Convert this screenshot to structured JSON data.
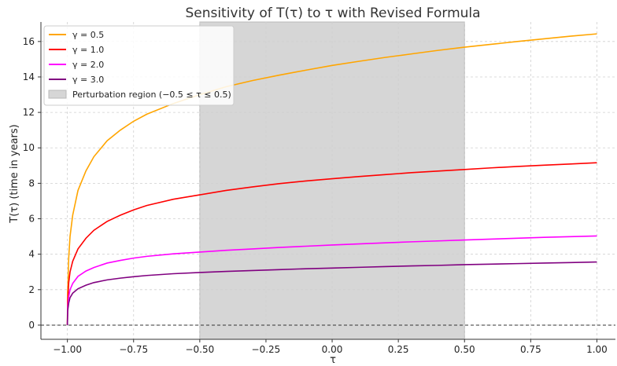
{
  "chart_data": {
    "type": "line",
    "title": "Sensitivity of T(τ) to τ with Revised Formula",
    "xlabel": "τ",
    "ylabel": "T(τ) (time in years)",
    "xlim": [
      -1.1,
      1.07
    ],
    "ylim": [
      -0.8,
      17.1
    ],
    "xticks": [
      -1.0,
      -0.75,
      -0.5,
      -0.25,
      0.0,
      0.25,
      0.5,
      0.75,
      1.0
    ],
    "xtick_labels": [
      "−1.00",
      "−0.75",
      "−0.50",
      "−0.25",
      "0.00",
      "0.25",
      "0.50",
      "0.75",
      "1.00"
    ],
    "yticks": [
      0,
      2,
      4,
      6,
      8,
      10,
      12,
      14,
      16
    ],
    "ytick_labels": [
      "0",
      "2",
      "4",
      "6",
      "8",
      "10",
      "12",
      "14",
      "16"
    ],
    "grid": true,
    "legend_position": "top-left",
    "shaded_region": {
      "label": "Perturbation region (−0.5 ≤ τ ≤ 0.5)",
      "x_start": -0.5,
      "x_end": 0.5,
      "color": "#d6d6d6"
    },
    "reference_line": {
      "y": 0,
      "style": "dashed",
      "color": "#333333"
    },
    "series": [
      {
        "name": "γ = 0.5",
        "color": "#ffa500",
        "x": [
          -1.0,
          -0.999,
          -0.995,
          -0.99,
          -0.98,
          -0.96,
          -0.93,
          -0.9,
          -0.85,
          -0.8,
          -0.75,
          -0.7,
          -0.6,
          -0.5,
          -0.4,
          -0.3,
          -0.2,
          -0.1,
          0.0,
          0.1,
          0.2,
          0.3,
          0.4,
          0.5,
          0.6,
          0.7,
          0.8,
          0.9,
          1.0
        ],
        "y": [
          0.0,
          1.8,
          3.8,
          5.0,
          6.2,
          7.6,
          8.7,
          9.5,
          10.4,
          11.0,
          11.5,
          11.9,
          12.5,
          13.0,
          13.45,
          13.8,
          14.1,
          14.38,
          14.65,
          14.88,
          15.1,
          15.3,
          15.5,
          15.68,
          15.84,
          16.0,
          16.15,
          16.3,
          16.43
        ]
      },
      {
        "name": "γ = 1.0",
        "color": "#ff0000",
        "x": [
          -1.0,
          -0.999,
          -0.995,
          -0.99,
          -0.98,
          -0.96,
          -0.93,
          -0.9,
          -0.85,
          -0.8,
          -0.75,
          -0.7,
          -0.6,
          -0.5,
          -0.4,
          -0.3,
          -0.2,
          -0.1,
          0.0,
          0.1,
          0.2,
          0.3,
          0.4,
          0.5,
          0.6,
          0.7,
          0.8,
          0.9,
          1.0
        ],
        "y": [
          0.0,
          1.3,
          2.4,
          3.0,
          3.6,
          4.3,
          4.9,
          5.35,
          5.85,
          6.2,
          6.5,
          6.75,
          7.1,
          7.35,
          7.6,
          7.8,
          7.98,
          8.13,
          8.26,
          8.38,
          8.49,
          8.6,
          8.69,
          8.78,
          8.87,
          8.95,
          9.02,
          9.09,
          9.16
        ]
      },
      {
        "name": "γ = 2.0",
        "color": "#ff00ff",
        "x": [
          -1.0,
          -0.999,
          -0.995,
          -0.99,
          -0.98,
          -0.96,
          -0.93,
          -0.9,
          -0.85,
          -0.8,
          -0.75,
          -0.7,
          -0.6,
          -0.5,
          -0.4,
          -0.3,
          -0.2,
          -0.1,
          0.0,
          0.1,
          0.2,
          0.3,
          0.4,
          0.5,
          0.6,
          0.7,
          0.8,
          0.9,
          1.0
        ],
        "y": [
          0.0,
          1.0,
          1.6,
          2.0,
          2.35,
          2.75,
          3.05,
          3.25,
          3.5,
          3.65,
          3.78,
          3.88,
          4.02,
          4.12,
          4.22,
          4.3,
          4.38,
          4.45,
          4.52,
          4.58,
          4.64,
          4.7,
          4.75,
          4.8,
          4.85,
          4.9,
          4.95,
          4.99,
          5.03
        ]
      },
      {
        "name": "γ = 3.0",
        "color": "#800080",
        "x": [
          -1.0,
          -0.999,
          -0.995,
          -0.99,
          -0.98,
          -0.96,
          -0.93,
          -0.9,
          -0.85,
          -0.8,
          -0.75,
          -0.7,
          -0.6,
          -0.5,
          -0.4,
          -0.3,
          -0.2,
          -0.1,
          0.0,
          0.1,
          0.2,
          0.3,
          0.4,
          0.5,
          0.6,
          0.7,
          0.8,
          0.9,
          1.0
        ],
        "y": [
          0.0,
          0.8,
          1.25,
          1.55,
          1.8,
          2.05,
          2.25,
          2.4,
          2.55,
          2.65,
          2.73,
          2.8,
          2.9,
          2.97,
          3.03,
          3.08,
          3.13,
          3.18,
          3.22,
          3.26,
          3.3,
          3.34,
          3.37,
          3.41,
          3.44,
          3.47,
          3.5,
          3.53,
          3.56
        ]
      }
    ]
  }
}
